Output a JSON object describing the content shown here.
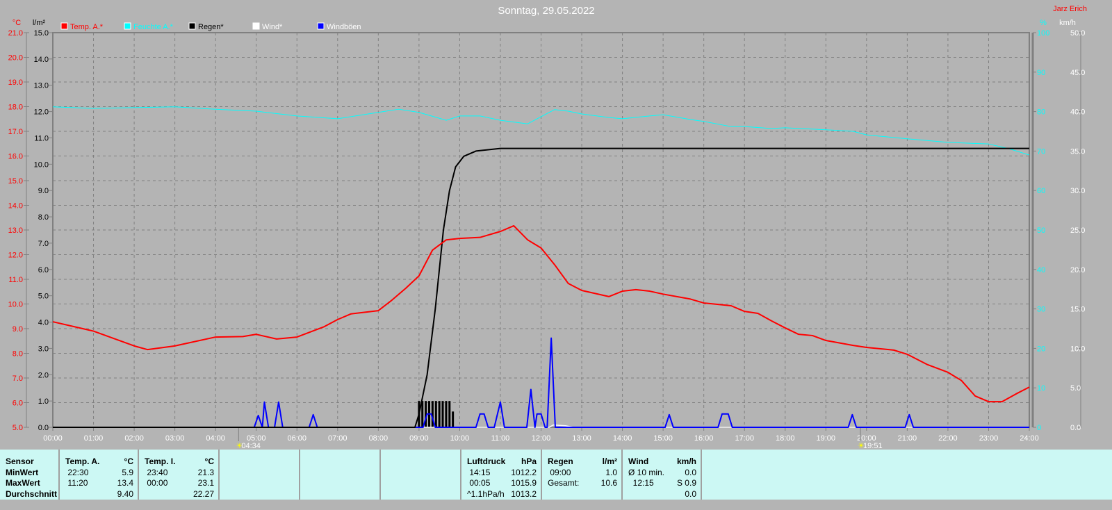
{
  "title": "Sonntag, 29.05.2022",
  "author": "Jarz Erich",
  "colors": {
    "temp": "#ff0000",
    "humidity": "#00ffff",
    "rain": "#000000",
    "wind": "#ffffff",
    "gusts": "#0000ff",
    "background": "#b4b4b4",
    "table": "#ccf8f4"
  },
  "chart_data": {
    "type": "line",
    "title": "Sonntag, 29.05.2022",
    "x_ticks": [
      "00:00",
      "01:00",
      "02:00",
      "03:00",
      "04:00",
      "05:00",
      "06:00",
      "07:00",
      "08:00",
      "09:00",
      "10:00",
      "11:00",
      "12:00",
      "13:00",
      "14:00",
      "15:00",
      "16:00",
      "17:00",
      "18:00",
      "19:00",
      "20:00",
      "21:00",
      "22:00",
      "23:00",
      "24:00"
    ],
    "axes": {
      "temp": {
        "unit": "°C",
        "range": [
          5,
          21
        ],
        "ticks": [
          "21.0",
          "20.0",
          "19.0",
          "18.0",
          "17.0",
          "16.0",
          "15.0",
          "14.0",
          "13.0",
          "12.0",
          "11.0",
          "10.0",
          "9.0",
          "8.0",
          "7.0",
          "6.0",
          "5.0"
        ]
      },
      "rain": {
        "unit": "l/m²",
        "range": [
          0,
          15
        ],
        "ticks": [
          "15.0",
          "14.0",
          "13.0",
          "12.0",
          "11.0",
          "10.0",
          "9.0",
          "8.0",
          "7.0",
          "6.0",
          "5.0",
          "4.0",
          "3.0",
          "2.0",
          "1.0",
          "0.0"
        ]
      },
      "humidity": {
        "unit": "%",
        "range": [
          0,
          100
        ],
        "ticks": [
          "100",
          "90",
          "80",
          "70",
          "60",
          "50",
          "40",
          "30",
          "20",
          "10",
          "0"
        ]
      },
      "wind": {
        "unit": "km/h",
        "range": [
          0,
          50
        ],
        "ticks": [
          "50.0",
          "45.0",
          "40.0",
          "35.0",
          "30.0",
          "25.0",
          "20.0",
          "15.0",
          "10.0",
          "5.0",
          "0.0"
        ]
      }
    },
    "grid": true,
    "legend_placement": "top",
    "sun": {
      "sunrise": "04:34",
      "sunset": "19:51"
    },
    "series": [
      {
        "name": "Temp. A.*",
        "axis": "temp",
        "points": [
          [
            0,
            9.28
          ],
          [
            1,
            8.9
          ],
          [
            2,
            8.3
          ],
          [
            2.33,
            8.15
          ],
          [
            3,
            8.3
          ],
          [
            4,
            8.66
          ],
          [
            4.67,
            8.68
          ],
          [
            5,
            8.77
          ],
          [
            5.5,
            8.58
          ],
          [
            6,
            8.66
          ],
          [
            6.67,
            9.08
          ],
          [
            7,
            9.37
          ],
          [
            7.33,
            9.6
          ],
          [
            8,
            9.73
          ],
          [
            8.33,
            10.15
          ],
          [
            8.67,
            10.63
          ],
          [
            9,
            11.14
          ],
          [
            9.33,
            12.18
          ],
          [
            9.67,
            12.6
          ],
          [
            10,
            12.66
          ],
          [
            10.5,
            12.7
          ],
          [
            11,
            12.94
          ],
          [
            11.33,
            13.17
          ],
          [
            11.67,
            12.6
          ],
          [
            12,
            12.27
          ],
          [
            12.33,
            11.6
          ],
          [
            12.67,
            10.83
          ],
          [
            13,
            10.55
          ],
          [
            13.67,
            10.3
          ],
          [
            14,
            10.52
          ],
          [
            14.33,
            10.58
          ],
          [
            14.67,
            10.52
          ],
          [
            15,
            10.4
          ],
          [
            15.67,
            10.2
          ],
          [
            16,
            10.04
          ],
          [
            16.67,
            9.93
          ],
          [
            17,
            9.7
          ],
          [
            17.33,
            9.62
          ],
          [
            17.67,
            9.31
          ],
          [
            18,
            9.03
          ],
          [
            18.33,
            8.77
          ],
          [
            18.67,
            8.72
          ],
          [
            19,
            8.52
          ],
          [
            19.67,
            8.32
          ],
          [
            20,
            8.24
          ],
          [
            20.67,
            8.13
          ],
          [
            21,
            7.96
          ],
          [
            21.5,
            7.54
          ],
          [
            22,
            7.23
          ],
          [
            22.33,
            6.9
          ],
          [
            22.67,
            6.27
          ],
          [
            23,
            6.04
          ],
          [
            23.33,
            6.04
          ],
          [
            23.67,
            6.35
          ],
          [
            24,
            6.63
          ]
        ]
      },
      {
        "name": "Feuchte A.*",
        "axis": "humidity",
        "points": [
          [
            0,
            81.2
          ],
          [
            1,
            80.8
          ],
          [
            2,
            81
          ],
          [
            3,
            81.2
          ],
          [
            4,
            80.6
          ],
          [
            5,
            80.1
          ],
          [
            6,
            78.9
          ],
          [
            7,
            78.2
          ],
          [
            8,
            79.8
          ],
          [
            8.5,
            80.6
          ],
          [
            9,
            79.8
          ],
          [
            9.67,
            77.8
          ],
          [
            10,
            78.9
          ],
          [
            10.5,
            78.9
          ],
          [
            11,
            77.8
          ],
          [
            11.67,
            76.9
          ],
          [
            12,
            78.7
          ],
          [
            12.33,
            80.5
          ],
          [
            12.67,
            80.1
          ],
          [
            13,
            79.4
          ],
          [
            13.67,
            78.5
          ],
          [
            14,
            78.2
          ],
          [
            14.67,
            78.9
          ],
          [
            15,
            79.2
          ],
          [
            15.67,
            78
          ],
          [
            16,
            77.5
          ],
          [
            16.67,
            76.2
          ],
          [
            17,
            76.2
          ],
          [
            17.67,
            75.7
          ],
          [
            18,
            75.9
          ],
          [
            19,
            75.4
          ],
          [
            19.67,
            75
          ],
          [
            20,
            74.1
          ],
          [
            21,
            73.1
          ],
          [
            22,
            72.2
          ],
          [
            23,
            71.8
          ],
          [
            23.5,
            70.6
          ],
          [
            24,
            69
          ]
        ]
      },
      {
        "name": "Regen*",
        "axis": "rain",
        "points": [
          [
            0,
            0
          ],
          [
            8.9,
            0
          ],
          [
            9,
            0.5
          ],
          [
            9.2,
            2
          ],
          [
            9.4,
            4.5
          ],
          [
            9.6,
            7.5
          ],
          [
            9.75,
            9
          ],
          [
            9.9,
            9.9
          ],
          [
            10.1,
            10.3
          ],
          [
            10.4,
            10.5
          ],
          [
            11,
            10.6
          ],
          [
            24,
            10.6
          ]
        ],
        "bars": [
          [
            9,
            1.0
          ],
          [
            9.083,
            1.0
          ],
          [
            9.167,
            1.0
          ],
          [
            9.25,
            1.0
          ],
          [
            9.333,
            1.0
          ],
          [
            9.417,
            1.0
          ],
          [
            9.5,
            1.0
          ],
          [
            9.583,
            1.0
          ],
          [
            9.667,
            1.0
          ],
          [
            9.75,
            1.0
          ],
          [
            9.833,
            0.6
          ]
        ]
      },
      {
        "name": "Wind*",
        "axis": "wind",
        "points": [
          [
            0,
            0
          ],
          [
            12.2,
            0
          ],
          [
            12.3,
            0.3
          ],
          [
            12.6,
            0.2
          ],
          [
            12.8,
            0
          ],
          [
            24,
            0
          ]
        ]
      },
      {
        "name": "Windböen",
        "axis": "wind",
        "points": [
          [
            0,
            0
          ],
          [
            4.95,
            0
          ],
          [
            5.05,
            1.5
          ],
          [
            5.15,
            0
          ],
          [
            5.2,
            3.2
          ],
          [
            5.3,
            0
          ],
          [
            5.45,
            0
          ],
          [
            5.55,
            3.2
          ],
          [
            5.65,
            0
          ],
          [
            6.3,
            0
          ],
          [
            6.4,
            1.6
          ],
          [
            6.5,
            0
          ],
          [
            9.1,
            0
          ],
          [
            9.2,
            1.7
          ],
          [
            9.3,
            1.7
          ],
          [
            9.4,
            0
          ],
          [
            10.4,
            0
          ],
          [
            10.5,
            1.7
          ],
          [
            10.6,
            1.7
          ],
          [
            10.7,
            0
          ],
          [
            10.85,
            0
          ],
          [
            11,
            3.2
          ],
          [
            11.1,
            0
          ],
          [
            11.65,
            0
          ],
          [
            11.75,
            4.8
          ],
          [
            11.85,
            0
          ],
          [
            11.9,
            1.7
          ],
          [
            12.0,
            1.7
          ],
          [
            12.1,
            0
          ],
          [
            12.15,
            0
          ],
          [
            12.25,
            11.3
          ],
          [
            12.35,
            0
          ],
          [
            15.05,
            0
          ],
          [
            15.15,
            1.6
          ],
          [
            15.25,
            0
          ],
          [
            16.35,
            0
          ],
          [
            16.45,
            1.7
          ],
          [
            16.6,
            1.7
          ],
          [
            16.7,
            0
          ],
          [
            19.55,
            0
          ],
          [
            19.65,
            1.6
          ],
          [
            19.75,
            0
          ],
          [
            20.95,
            0
          ],
          [
            21.05,
            1.6
          ],
          [
            21.15,
            0
          ],
          [
            24,
            0
          ]
        ]
      }
    ]
  },
  "table": {
    "cols": [
      {
        "rows": [
          [
            "Sensor",
            ""
          ],
          [
            "MinWert",
            ""
          ],
          [
            "MaxWert",
            ""
          ],
          [
            "Durchschnitt",
            ""
          ]
        ],
        "bold": true
      },
      {
        "rows": [
          [
            "Temp. A.",
            "°C"
          ],
          [
            " 22:30",
            "5.9"
          ],
          [
            " 11:20",
            "13.4"
          ],
          [
            "",
            "9.40"
          ]
        ]
      },
      {
        "rows": [
          [
            "Temp. I.",
            "°C"
          ],
          [
            " 23:40",
            "21.3"
          ],
          [
            " 00:00",
            "23.1"
          ],
          [
            "",
            "22.27"
          ]
        ]
      },
      {
        "rows": []
      },
      {
        "rows": []
      },
      {
        "rows": []
      },
      {
        "rows": [
          [
            "Luftdruck",
            "hPa"
          ],
          [
            " 14:15",
            "1012.2"
          ],
          [
            " 00:05",
            "1015.9"
          ],
          [
            "^1.1hPa/h",
            "1013.2"
          ]
        ]
      },
      {
        "rows": [
          [
            "Regen",
            "l/m²"
          ],
          [
            "",
            ""
          ],
          [
            " 09:00",
            "1.0"
          ],
          [
            "Gesamt:",
            "10.6"
          ]
        ]
      },
      {
        "rows": [
          [
            "Wind",
            "km/h"
          ],
          [
            "Ø 10 min.",
            "0.0"
          ],
          [
            "  12:15",
            "S 0.9"
          ],
          [
            "",
            "0.0"
          ]
        ]
      }
    ]
  }
}
